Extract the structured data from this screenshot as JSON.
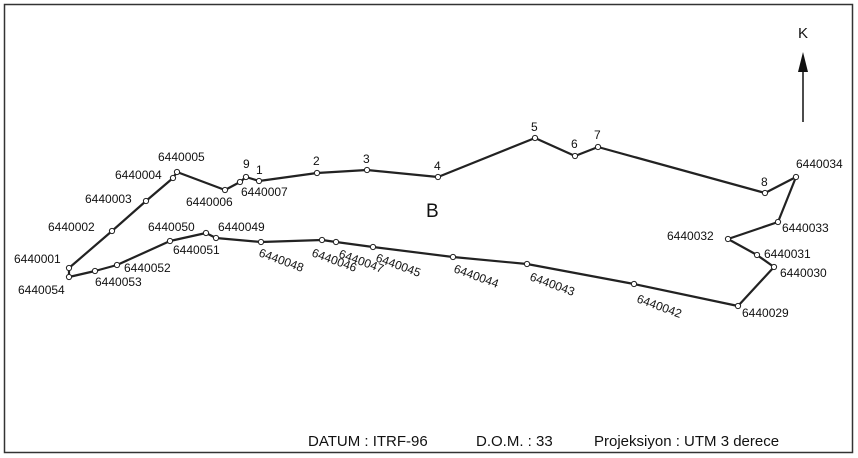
{
  "compass": "K",
  "region": "B",
  "points": [
    "6440001",
    "6440002",
    "6440003",
    "6440004",
    "6440005",
    "6440006",
    "6440007",
    "9",
    "1",
    "2",
    "3",
    "4",
    "5",
    "6",
    "7",
    "8",
    "6440034",
    "6440033",
    "6440032",
    "6440031",
    "6440030",
    "6440029",
    "6440042",
    "6440043",
    "6440044",
    "6440045",
    "6440047",
    "6440046",
    "6440048",
    "6440049",
    "6440050",
    "6440051",
    "6440052",
    "6440053",
    "6440054"
  ],
  "footer": [
    "DATUM : ITRF-96",
    "D.O.M. : 33",
    "Projeksiyon : UTM 3 derece"
  ]
}
